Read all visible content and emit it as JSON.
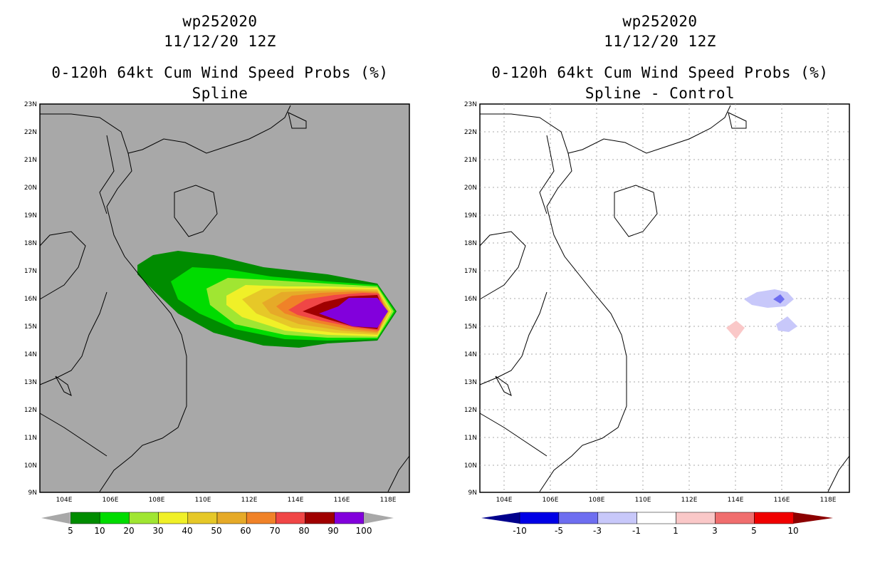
{
  "panels": [
    {
      "id": "spline",
      "title_lines": [
        "wp252020",
        "11/12/20 12Z",
        "0-120h 64kt Cum Wind Speed Probs (%)",
        "Spline"
      ],
      "background": "#a8a8a8",
      "lat_labels": [
        "23N",
        "22N",
        "21N",
        "20N",
        "19N",
        "18N",
        "17N",
        "16N",
        "15N",
        "14N",
        "13N",
        "12N",
        "11N",
        "10N",
        "9N"
      ],
      "lon_labels": [
        "104E",
        "106E",
        "108E",
        "110E",
        "112E",
        "114E",
        "116E",
        "118E"
      ],
      "colorbar": {
        "colors": [
          "#008c00",
          "#00dc00",
          "#a0e632",
          "#f0f028",
          "#e6c828",
          "#e6aa28",
          "#f08228",
          "#f04646",
          "#a00000",
          "#8200dc"
        ],
        "end_color": "#a8a8a8",
        "labels": [
          "5",
          "10",
          "20",
          "30",
          "40",
          "50",
          "60",
          "70",
          "80",
          "90",
          "100"
        ]
      }
    },
    {
      "id": "diff",
      "title_lines": [
        "wp252020",
        "11/12/20 12Z",
        "0-120h 64kt Cum Wind Speed Probs (%)",
        "Spline - Control"
      ],
      "background": "#ffffff",
      "lat_labels": [
        "23N",
        "22N",
        "21N",
        "20N",
        "19N",
        "18N",
        "17N",
        "16N",
        "15N",
        "14N",
        "13N",
        "12N",
        "11N",
        "10N",
        "9N"
      ],
      "lon_labels": [
        "104E",
        "106E",
        "108E",
        "110E",
        "112E",
        "114E",
        "116E",
        "118E"
      ],
      "colorbar": {
        "colors": [
          "#0000e6",
          "#6e6ef0",
          "#c8c8fa",
          "#ffffff",
          "#fac8c8",
          "#f06e6e",
          "#f00000"
        ],
        "left_end": "#00008c",
        "right_end": "#8c0000",
        "labels": [
          "-10",
          "-5",
          "-3",
          "-1",
          "1",
          "3",
          "5",
          "10"
        ]
      }
    }
  ]
}
